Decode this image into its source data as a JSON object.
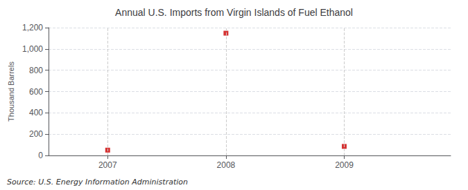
{
  "chart_data": {
    "type": "scatter",
    "title": "Annual U.S. Imports from Virgin Islands of Fuel Ethanol",
    "ylabel": "Thousand Barrels",
    "annotation": "Source: U.S. Energy Information Administration",
    "x": [
      2007,
      2008,
      2009
    ],
    "values": [
      50,
      1148,
      85
    ],
    "color": "#cc0000",
    "marker": "square",
    "xlim": [
      2006.5,
      2009.9
    ],
    "xticks": [
      2007,
      2008,
      2009
    ],
    "ylim": [
      0,
      1200
    ],
    "yticks": [
      0,
      200,
      400,
      600,
      800,
      {
        "value": 1000,
        "label": "1,000"
      },
      {
        "value": 1200,
        "label": "1,200"
      }
    ],
    "grid": true
  }
}
